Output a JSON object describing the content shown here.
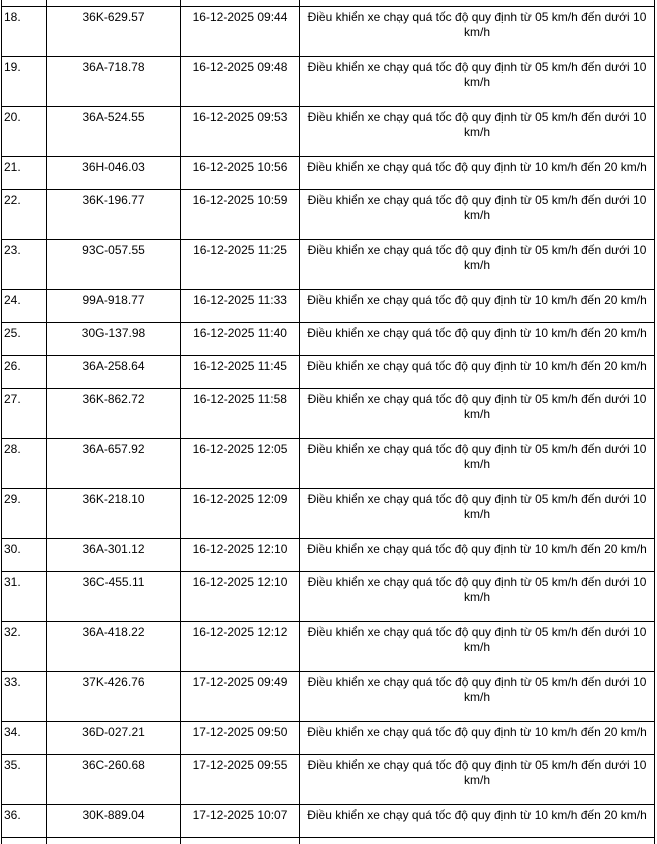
{
  "table": {
    "columns": [
      {
        "key": "no",
        "label": ""
      },
      {
        "key": "plate",
        "label": ""
      },
      {
        "key": "datetime",
        "label": ""
      },
      {
        "key": "violation",
        "label": ""
      }
    ],
    "violation_types": {
      "over_05_under_10": "Điều khiển xe chạy quá tốc độ quy định từ 05 km/h đến dưới 10 km/h",
      "from_10_to_20": "Điều khiển xe chạy quá tốc độ quy định từ 10 km/h đến 20 km/h"
    },
    "rows": [
      {
        "no": "18.",
        "plate": "36K-629.57",
        "datetime": "16-12-2025 09:44",
        "violation": "Điều khiển xe chạy quá tốc độ quy định từ 05 km/h đến dưới 10 km/h"
      },
      {
        "no": "19.",
        "plate": "36A-718.78",
        "datetime": "16-12-2025 09:48",
        "violation": "Điều khiển xe chạy quá tốc độ quy định từ 05 km/h đến dưới 10 km/h"
      },
      {
        "no": "20.",
        "plate": "36A-524.55",
        "datetime": "16-12-2025 09:53",
        "violation": "Điều khiển xe chạy quá tốc độ quy định từ 05 km/h đến dưới 10 km/h"
      },
      {
        "no": "21.",
        "plate": "36H-046.03",
        "datetime": "16-12-2025 10:56",
        "violation": "Điều khiển xe chạy quá tốc độ quy định từ 10 km/h đến 20 km/h"
      },
      {
        "no": "22.",
        "plate": "36K-196.77",
        "datetime": "16-12-2025 10:59",
        "violation": "Điều khiển xe chạy quá tốc độ quy định từ 05 km/h đến dưới 10 km/h"
      },
      {
        "no": "23.",
        "plate": "93C-057.55",
        "datetime": "16-12-2025 11:25",
        "violation": "Điều khiển xe chạy quá tốc độ quy định từ 05 km/h đến dưới 10 km/h"
      },
      {
        "no": "24.",
        "plate": "99A-918.77",
        "datetime": "16-12-2025 11:33",
        "violation": "Điều khiển xe chạy quá tốc độ quy định từ 10 km/h đến 20 km/h"
      },
      {
        "no": "25.",
        "plate": "30G-137.98",
        "datetime": "16-12-2025 11:40",
        "violation": "Điều khiển xe chạy quá tốc độ quy định từ 10 km/h đến 20 km/h"
      },
      {
        "no": "26.",
        "plate": "36A-258.64",
        "datetime": "16-12-2025 11:45",
        "violation": "Điều khiển xe chạy quá tốc độ quy định từ 10 km/h đến 20 km/h"
      },
      {
        "no": "27.",
        "plate": "36K-862.72",
        "datetime": "16-12-2025 11:58",
        "violation": "Điều khiển xe chạy quá tốc độ quy định từ 05 km/h đến dưới 10 km/h"
      },
      {
        "no": "28.",
        "plate": "36A-657.92",
        "datetime": "16-12-2025 12:05",
        "violation": "Điều khiển xe chạy quá tốc độ quy định từ 05 km/h đến dưới 10 km/h"
      },
      {
        "no": "29.",
        "plate": "36K-218.10",
        "datetime": "16-12-2025 12:09",
        "violation": "Điều khiển xe chạy quá tốc độ quy định từ 05 km/h đến dưới 10 km/h"
      },
      {
        "no": "30.",
        "plate": "36A-301.12",
        "datetime": "16-12-2025 12:10",
        "violation": "Điều khiển xe chạy quá tốc độ quy định từ 10 km/h đến 20 km/h"
      },
      {
        "no": "31.",
        "plate": "36C-455.11",
        "datetime": "16-12-2025 12:10",
        "violation": "Điều khiển xe chạy quá tốc độ quy định từ 05 km/h đến dưới 10 km/h"
      },
      {
        "no": "32.",
        "plate": "36A-418.22",
        "datetime": "16-12-2025 12:12",
        "violation": "Điều khiển xe chạy quá tốc độ quy định từ 05 km/h đến dưới 10 km/h"
      },
      {
        "no": "33.",
        "plate": "37K-426.76",
        "datetime": "17-12-2025 09:49",
        "violation": "Điều khiển xe chạy quá tốc độ quy định từ 05 km/h đến dưới 10 km/h"
      },
      {
        "no": "34.",
        "plate": "36D-027.21",
        "datetime": "17-12-2025 09:50",
        "violation": "Điều khiển xe chạy quá tốc độ quy định từ 10 km/h đến 20 km/h"
      },
      {
        "no": "35.",
        "plate": "36C-260.68",
        "datetime": "17-12-2025 09:55",
        "violation": "Điều khiển xe chạy quá tốc độ quy định từ 05 km/h đến dưới 10 km/h"
      },
      {
        "no": "36.",
        "plate": "30K-889.04",
        "datetime": "17-12-2025 10:07",
        "violation": "Điều khiển xe chạy quá tốc độ quy định từ 10 km/h đến 20 km/h"
      }
    ],
    "colors": {
      "border": "#000000",
      "text": "#000000",
      "background": "#ffffff"
    }
  }
}
